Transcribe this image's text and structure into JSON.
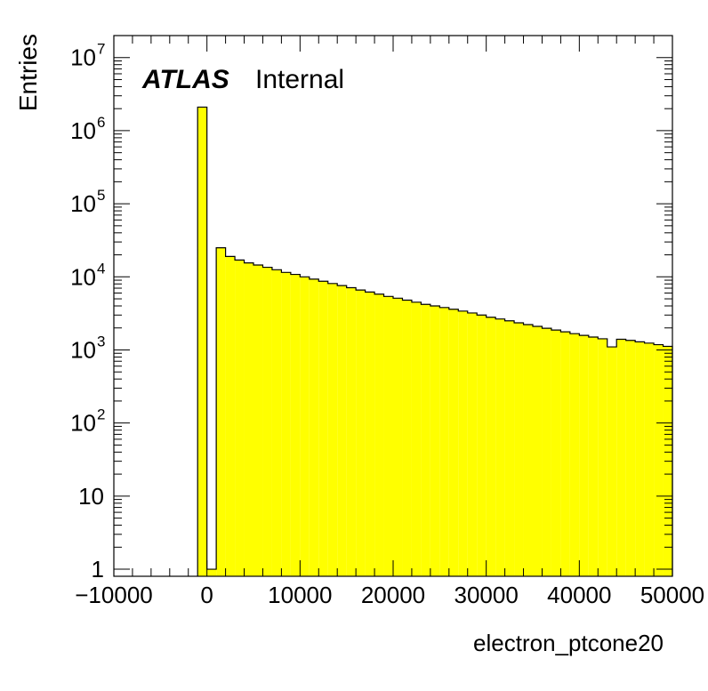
{
  "chart_data": {
    "type": "bar",
    "title": "",
    "xlabel": "electron_ptcone20",
    "ylabel": "Entries",
    "label_atlas": "ATLAS",
    "label_status": "Internal",
    "xlim": [
      -10000,
      50000
    ],
    "ylim": [
      0.8,
      20000000
    ],
    "yscale": "log",
    "grid": false,
    "legend": "none",
    "fill_color": "#ffff00",
    "line_color": "#000000",
    "bin_width": 1000,
    "x_ticks": [
      -10000,
      0,
      10000,
      20000,
      30000,
      40000,
      50000
    ],
    "x_tick_labels": [
      "−10000",
      "0",
      "10000",
      "20000",
      "30000",
      "40000",
      "50000"
    ],
    "y_ticks": [
      1,
      10,
      100,
      1000,
      10000,
      100000,
      1000000,
      10000000
    ],
    "y_tick_labels": [
      {
        "base": "1",
        "exp": ""
      },
      {
        "base": "10",
        "exp": ""
      },
      {
        "base": "10",
        "exp": "2"
      },
      {
        "base": "10",
        "exp": "3"
      },
      {
        "base": "10",
        "exp": "4"
      },
      {
        "base": "10",
        "exp": "5"
      },
      {
        "base": "10",
        "exp": "6"
      },
      {
        "base": "10",
        "exp": "7"
      }
    ],
    "bins_lowedge": [
      -1000,
      0,
      1000,
      2000,
      3000,
      4000,
      5000,
      6000,
      7000,
      8000,
      9000,
      10000,
      11000,
      12000,
      13000,
      14000,
      15000,
      16000,
      17000,
      18000,
      19000,
      20000,
      21000,
      22000,
      23000,
      24000,
      25000,
      26000,
      27000,
      28000,
      29000,
      30000,
      31000,
      32000,
      33000,
      34000,
      35000,
      36000,
      37000,
      38000,
      39000,
      40000,
      41000,
      42000,
      43000,
      44000,
      45000,
      46000,
      47000,
      48000,
      49000
    ],
    "values": [
      2100000,
      1,
      25000,
      19000,
      17000,
      15500,
      14500,
      13500,
      12500,
      11500,
      10800,
      10000,
      9300,
      8700,
      8100,
      7600,
      7100,
      6600,
      6200,
      5800,
      5400,
      5100,
      4800,
      4500,
      4200,
      4000,
      3800,
      3600,
      3400,
      3200,
      3000,
      2800,
      2650,
      2500,
      2350,
      2220,
      2100,
      1980,
      1870,
      1770,
      1670,
      1580,
      1500,
      1420,
      1100,
      1400,
      1350,
      1290,
      1240,
      1180,
      1120
    ]
  }
}
